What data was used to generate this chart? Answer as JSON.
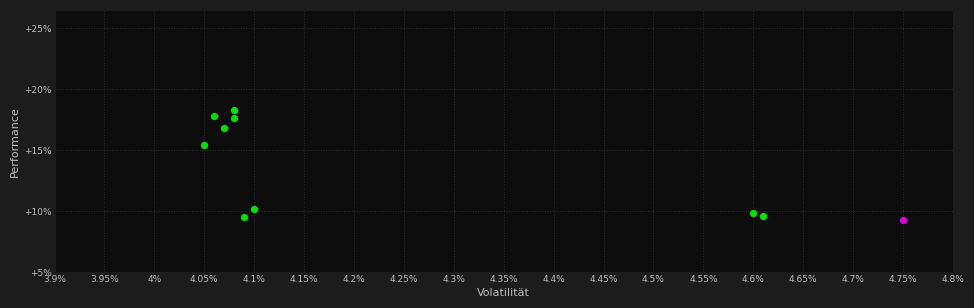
{
  "background_color": "#1c1c1c",
  "plot_bg_color": "#0d0d0d",
  "grid_color": "#2e2e2e",
  "text_color": "#bbbbbb",
  "xlabel": "Volatilität",
  "ylabel": "Performance",
  "xlim": [
    0.039,
    0.048
  ],
  "ylim": [
    0.05,
    0.265
  ],
  "xticks": [
    0.039,
    0.0395,
    0.04,
    0.0405,
    0.041,
    0.0415,
    0.042,
    0.0425,
    0.043,
    0.0435,
    0.044,
    0.0445,
    0.045,
    0.0455,
    0.046,
    0.0465,
    0.047,
    0.0475,
    0.048
  ],
  "xtick_labels": [
    "3.9%",
    "3.95%",
    "4%",
    "4.05%",
    "4.1%",
    "4.15%",
    "4.2%",
    "4.25%",
    "4.3%",
    "4.35%",
    "4.4%",
    "4.45%",
    "4.5%",
    "4.55%",
    "4.6%",
    "4.65%",
    "4.7%",
    "4.75%",
    "4.8%"
  ],
  "yticks": [
    0.05,
    0.1,
    0.15,
    0.2,
    0.25
  ],
  "ytick_labels": [
    "+5%",
    "+10%",
    "+15%",
    "+20%",
    "+25%"
  ],
  "green_points": [
    [
      0.0408,
      0.183
    ],
    [
      0.0406,
      0.178
    ],
    [
      0.0408,
      0.176
    ],
    [
      0.0407,
      0.168
    ],
    [
      0.0405,
      0.154
    ],
    [
      0.041,
      0.102
    ],
    [
      0.0409,
      0.095
    ],
    [
      0.046,
      0.098
    ],
    [
      0.0461,
      0.096
    ]
  ],
  "magenta_points": [
    [
      0.0475,
      0.093
    ]
  ],
  "point_size": 28,
  "green_color": "#00dd00",
  "magenta_color": "#dd00dd"
}
